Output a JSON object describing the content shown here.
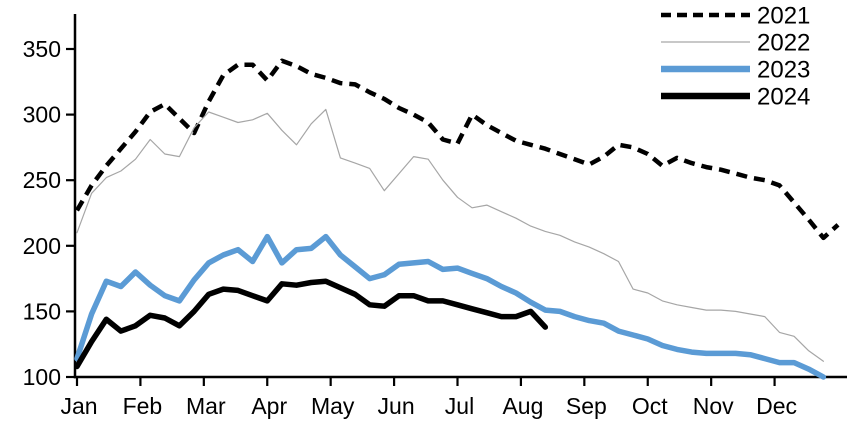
{
  "chart_data": {
    "type": "line",
    "title": "",
    "x_axis": {
      "label": "",
      "tick_labels": [
        "Jan",
        "Feb",
        "Mar",
        "Apr",
        "May",
        "Jun",
        "Jul",
        "Aug",
        "Sep",
        "Oct",
        "Nov",
        "Dec"
      ]
    },
    "y_axis": {
      "label": "",
      "ticks": [
        100,
        150,
        200,
        250,
        300,
        350
      ],
      "range": [
        100,
        375
      ]
    },
    "x_unit": "week-of-year",
    "grid": "off",
    "legend": {
      "position": "top-right",
      "entries": [
        "2021",
        "2022",
        "2023",
        "2024"
      ]
    },
    "colors": {
      "2021": "#000000",
      "2022": "#a6a6a6",
      "2023": "#5b9bd5",
      "2024": "#000000",
      "axis": "#000000"
    },
    "series": [
      {
        "name": "2021",
        "color": "#000000",
        "style": "dashed",
        "width": 4.5,
        "values": [
          227,
          246,
          261,
          274,
          287,
          302,
          308,
          297,
          286,
          310,
          330,
          338,
          338,
          326,
          341,
          337,
          331,
          328,
          324,
          323,
          317,
          312,
          305,
          300,
          294,
          281,
          278,
          300,
          292,
          286,
          280,
          277,
          274,
          270,
          266,
          262,
          268,
          277,
          275,
          270,
          261,
          267,
          263,
          260,
          258,
          255,
          252,
          250,
          246,
          233,
          220,
          206,
          216
        ]
      },
      {
        "name": "2022",
        "color": "#a6a6a6",
        "style": "solid",
        "width": 1.2,
        "values": [
          210,
          240,
          252,
          257,
          266,
          281,
          270,
          268,
          290,
          302,
          298,
          294,
          296,
          301,
          288,
          277,
          293,
          304,
          267,
          263,
          259,
          242,
          255,
          268,
          266,
          250,
          237,
          229,
          231,
          226,
          221,
          215,
          211,
          208,
          203,
          199,
          194,
          188,
          167,
          164,
          158,
          155,
          153,
          151,
          151,
          150,
          148,
          146,
          134,
          131,
          120,
          112
        ]
      },
      {
        "name": "2023",
        "color": "#5b9bd5",
        "style": "solid",
        "width": 5.5,
        "values": [
          114,
          148,
          173,
          169,
          180,
          170,
          162,
          158,
          174,
          187,
          193,
          197,
          188,
          207,
          187,
          197,
          198,
          207,
          193,
          184,
          175,
          178,
          186,
          187,
          188,
          182,
          183,
          179,
          175,
          169,
          164,
          157,
          151,
          150,
          146,
          143,
          141,
          135,
          132,
          129,
          124,
          121,
          119,
          118,
          118,
          118,
          117,
          114,
          111,
          111,
          106,
          100
        ]
      },
      {
        "name": "2024",
        "color": "#000000",
        "style": "solid",
        "width": 5.5,
        "values": [
          108,
          127,
          144,
          135,
          139,
          147,
          145,
          139,
          150,
          163,
          167,
          166,
          162,
          158,
          171,
          170,
          172,
          173,
          168,
          163,
          155,
          154,
          162,
          162,
          158,
          158,
          155,
          152,
          149,
          146,
          146,
          150,
          138
        ]
      }
    ]
  }
}
